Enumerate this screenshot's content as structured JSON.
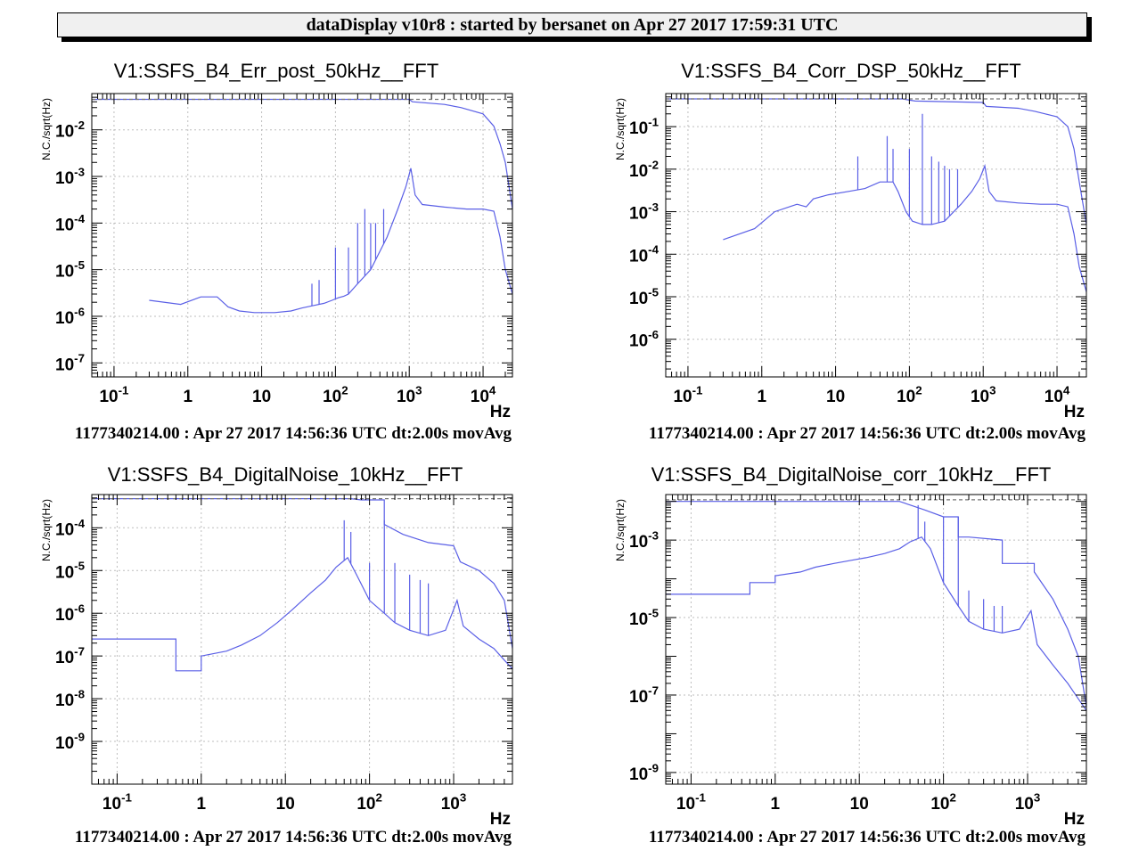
{
  "header": {
    "title": "dataDisplay v10r8 : started by bersanet on Apr 27 2017 17:59:31 UTC"
  },
  "colors": {
    "trace": "#5a5fe6",
    "grid": "#bdbdbd",
    "frame": "#000000"
  },
  "chart_data": [
    {
      "type": "line",
      "title": "V1:SSFS_B4_Err_post_50kHz__FFT",
      "ylabel": "N.C./sqrt(Hz)",
      "xlabel": "Hz",
      "footer": "1177340214.00 : Apr 27 2017 14:56:36 UTC dt:2.00s movAvg",
      "xscale": "log",
      "yscale": "log",
      "xlim": [
        0.05,
        25000
      ],
      "ylim": [
        5e-08,
        0.06
      ],
      "grid": true,
      "xticks": [
        {
          "v": 0.1,
          "b": "10",
          "e": "-1"
        },
        {
          "v": 1,
          "b": "1",
          "e": ""
        },
        {
          "v": 10,
          "b": "10",
          "e": ""
        },
        {
          "v": 100,
          "b": "10",
          "e": "2"
        },
        {
          "v": 1000,
          "b": "10",
          "e": "3"
        },
        {
          "v": 10000,
          "b": "10",
          "e": "4"
        }
      ],
      "yticks": [
        {
          "v": 1e-07,
          "b": "10",
          "e": "-7"
        },
        {
          "v": 1e-06,
          "b": "10",
          "e": "-6"
        },
        {
          "v": 1e-05,
          "b": "10",
          "e": "-5"
        },
        {
          "v": 0.0001,
          "b": "10",
          "e": "-4"
        },
        {
          "v": 0.001,
          "b": "10",
          "e": "-3"
        },
        {
          "v": 0.01,
          "b": "10",
          "e": "-2"
        }
      ],
      "series": [
        {
          "style": "solid",
          "x": [
            0.3,
            0.8,
            1.5,
            2.5,
            3.5,
            5,
            8,
            15,
            25,
            35,
            50,
            70,
            90,
            110,
            130,
            150,
            200,
            300,
            500,
            700,
            900,
            1050,
            1200,
            1500,
            3000,
            6000,
            10000,
            14000,
            17000,
            20000,
            25000
          ],
          "y": [
            2.2e-06,
            1.8e-06,
            2.6e-06,
            2.6e-06,
            1.6e-06,
            1.3e-06,
            1.2e-06,
            1.2e-06,
            1.3e-06,
            1.5e-06,
            1.7e-06,
            1.9e-06,
            2.2e-06,
            2.5e-06,
            2.7e-06,
            3e-06,
            5e-06,
            1e-05,
            5e-05,
            0.0002,
            0.0006,
            0.0015,
            0.0004,
            0.00025,
            0.00022,
            0.0002,
            0.0002,
            0.00018,
            5e-05,
            1e-05,
            3e-06
          ]
        },
        {
          "style": "solid",
          "x": [
            0.05,
            1000,
            1100,
            3000,
            5000,
            10000,
            14000,
            17000,
            20000,
            25000
          ],
          "y": [
            0.045,
            0.045,
            0.04,
            0.035,
            0.03,
            0.022,
            0.012,
            0.005,
            0.002,
            0.0002
          ]
        },
        {
          "style": "dashed",
          "x": [
            0.05,
            25000
          ],
          "y": [
            0.045,
            0.045
          ]
        }
      ],
      "peaks": [
        {
          "x": 48,
          "y": 5e-06
        },
        {
          "x": 60,
          "y": 6e-06
        },
        {
          "x": 100,
          "y": 3e-05
        },
        {
          "x": 150,
          "y": 3e-05
        },
        {
          "x": 200,
          "y": 0.0001
        },
        {
          "x": 250,
          "y": 0.0002
        },
        {
          "x": 300,
          "y": 0.0001
        },
        {
          "x": 350,
          "y": 0.0001
        },
        {
          "x": 450,
          "y": 0.0002
        }
      ]
    },
    {
      "type": "line",
      "title": "V1:SSFS_B4_Corr_DSP_50kHz__FFT",
      "ylabel": "N.C./sqrt(Hz)",
      "xlabel": "Hz",
      "footer": "1177340214.00 : Apr 27 2017 14:56:36 UTC dt:2.00s movAvg",
      "xscale": "log",
      "yscale": "log",
      "xlim": [
        0.05,
        25000
      ],
      "ylim": [
        1.3e-07,
        0.6
      ],
      "grid": true,
      "xticks": [
        {
          "v": 0.1,
          "b": "10",
          "e": "-1"
        },
        {
          "v": 1,
          "b": "1",
          "e": ""
        },
        {
          "v": 10,
          "b": "10",
          "e": ""
        },
        {
          "v": 100,
          "b": "10",
          "e": "2"
        },
        {
          "v": 1000,
          "b": "10",
          "e": "3"
        },
        {
          "v": 10000,
          "b": "10",
          "e": "4"
        }
      ],
      "yticks": [
        {
          "v": 1e-06,
          "b": "10",
          "e": "-6"
        },
        {
          "v": 1e-05,
          "b": "10",
          "e": "-5"
        },
        {
          "v": 0.0001,
          "b": "10",
          "e": "-4"
        },
        {
          "v": 0.001,
          "b": "10",
          "e": "-3"
        },
        {
          "v": 0.01,
          "b": "10",
          "e": "-2"
        },
        {
          "v": 0.1,
          "b": "10",
          "e": "-1"
        }
      ],
      "series": [
        {
          "style": "solid",
          "x": [
            0.3,
            0.8,
            1.5,
            3,
            4,
            5,
            8,
            15,
            25,
            40,
            60,
            70,
            90,
            110,
            150,
            200,
            300,
            500,
            700,
            900,
            1050,
            1200,
            1500,
            3000,
            6000,
            10000,
            14000,
            17000,
            20000,
            25000
          ],
          "y": [
            0.00022,
            0.0004,
            0.001,
            0.0015,
            0.0013,
            0.002,
            0.0025,
            0.003,
            0.0035,
            0.005,
            0.005,
            0.003,
            0.001,
            0.0006,
            0.0005,
            0.0005,
            0.0006,
            0.0015,
            0.003,
            0.006,
            0.012,
            0.003,
            0.0018,
            0.0016,
            0.0015,
            0.0015,
            0.0013,
            0.0003,
            5e-05,
            1.3e-05
          ]
        },
        {
          "style": "solid",
          "x": [
            0.05,
            80,
            120,
            1000,
            1100,
            3000,
            5000,
            10000,
            14000,
            17000,
            20000,
            25000
          ],
          "y": [
            0.45,
            0.45,
            0.4,
            0.37,
            0.3,
            0.27,
            0.23,
            0.17,
            0.1,
            0.03,
            0.005,
            0.0005
          ]
        },
        {
          "style": "dashed",
          "x": [
            0.05,
            25000
          ],
          "y": [
            0.45,
            0.45
          ]
        }
      ],
      "peaks": [
        {
          "x": 20,
          "y": 0.02
        },
        {
          "x": 50,
          "y": 0.06
        },
        {
          "x": 60,
          "y": 0.03
        },
        {
          "x": 100,
          "y": 0.03
        },
        {
          "x": 150,
          "y": 0.2
        },
        {
          "x": 200,
          "y": 0.02
        },
        {
          "x": 250,
          "y": 0.015
        },
        {
          "x": 300,
          "y": 0.012
        },
        {
          "x": 350,
          "y": 0.01
        },
        {
          "x": 450,
          "y": 0.01
        }
      ]
    },
    {
      "type": "line",
      "title": "V1:SSFS_B4_DigitalNoise_10kHz__FFT",
      "ylabel": "N.C./sqrt(Hz)",
      "xlabel": "Hz",
      "footer": "1177340214.00 : Apr 27 2017 14:56:36 UTC dt:2.00s movAvg",
      "xscale": "log",
      "yscale": "log",
      "xlim": [
        0.05,
        5000
      ],
      "ylim": [
        1e-10,
        0.0006
      ],
      "grid": true,
      "xticks": [
        {
          "v": 0.1,
          "b": "10",
          "e": "-1"
        },
        {
          "v": 1,
          "b": "1",
          "e": ""
        },
        {
          "v": 10,
          "b": "10",
          "e": ""
        },
        {
          "v": 100,
          "b": "10",
          "e": "2"
        },
        {
          "v": 1000,
          "b": "10",
          "e": "3"
        }
      ],
      "yticks": [
        {
          "v": 1e-09,
          "b": "10",
          "e": "-9"
        },
        {
          "v": 1e-08,
          "b": "10",
          "e": "-8"
        },
        {
          "v": 1e-07,
          "b": "10",
          "e": "-7"
        },
        {
          "v": 1e-06,
          "b": "10",
          "e": "-6"
        },
        {
          "v": 1e-05,
          "b": "10",
          "e": "-5"
        },
        {
          "v": 0.0001,
          "b": "10",
          "e": "-4"
        }
      ],
      "series": [
        {
          "style": "solid",
          "x": [
            0.05,
            0.5,
            0.5,
            1,
            1,
            2,
            3,
            5,
            8,
            12,
            20,
            30,
            40,
            55,
            70,
            100,
            150,
            200,
            300,
            500,
            800,
            1100,
            1300,
            2000,
            3000,
            4000,
            5000
          ],
          "y": [
            2.5e-07,
            2.5e-07,
            4.5e-08,
            4.5e-08,
            1e-07,
            1.3e-07,
            1.8e-07,
            3e-07,
            6e-07,
            1.2e-06,
            3e-06,
            6e-06,
            1.2e-05,
            2e-05,
            8e-06,
            2e-06,
            1e-06,
            6e-07,
            4e-07,
            3e-07,
            4e-07,
            2e-06,
            5e-07,
            2.5e-07,
            1.5e-07,
            8e-08,
            5e-08
          ]
        },
        {
          "style": "solid",
          "x": [
            0.05,
            60,
            80,
            150,
            150,
            250,
            500,
            1000,
            1200,
            2000,
            3000,
            4000,
            5000
          ],
          "y": [
            0.00048,
            0.00048,
            0.00045,
            0.00045,
            0.00012,
            7e-05,
            4.5e-05,
            3.8e-05,
            1.6e-05,
            1e-05,
            5e-06,
            2e-06,
            1.5e-07
          ]
        },
        {
          "style": "dashed",
          "x": [
            0.05,
            5000
          ],
          "y": [
            0.00048,
            0.00048
          ]
        }
      ],
      "peaks": [
        {
          "x": 50,
          "y": 0.00015
        },
        {
          "x": 60,
          "y": 8e-05
        },
        {
          "x": 100,
          "y": 1.5e-05
        },
        {
          "x": 150,
          "y": 0.00015
        },
        {
          "x": 200,
          "y": 1.5e-05
        },
        {
          "x": 300,
          "y": 8e-06
        },
        {
          "x": 400,
          "y": 6e-06
        },
        {
          "x": 500,
          "y": 5e-06
        }
      ]
    },
    {
      "type": "line",
      "title": "V1:SSFS_B4_DigitalNoise_corr_10kHz__FFT",
      "ylabel": "N.C./sqrt(Hz)",
      "xlabel": "Hz",
      "footer": "1177340214.00 : Apr 27 2017 14:56:36 UTC dt:2.00s movAvg",
      "xscale": "log",
      "yscale": "log",
      "xlim": [
        0.05,
        5000
      ],
      "ylim": [
        5e-10,
        0.015
      ],
      "grid": true,
      "xticks": [
        {
          "v": 0.1,
          "b": "10",
          "e": "-1"
        },
        {
          "v": 1,
          "b": "1",
          "e": ""
        },
        {
          "v": 10,
          "b": "10",
          "e": ""
        },
        {
          "v": 100,
          "b": "10",
          "e": "2"
        },
        {
          "v": 1000,
          "b": "10",
          "e": "3"
        }
      ],
      "yticks": [
        {
          "v": 1e-09,
          "b": "10",
          "e": "-9"
        },
        {
          "v": 1e-07,
          "b": "10",
          "e": "-7"
        },
        {
          "v": 1e-05,
          "b": "10",
          "e": "-5"
        },
        {
          "v": 0.001,
          "b": "10",
          "e": "-3"
        }
      ],
      "series": [
        {
          "style": "solid",
          "x": [
            0.05,
            0.5,
            0.5,
            1,
            1,
            2,
            3,
            5,
            8,
            12,
            20,
            30,
            40,
            55,
            70,
            100,
            150,
            200,
            300,
            500,
            800,
            1100,
            1300,
            2000,
            3000,
            4000,
            5000
          ],
          "y": [
            4e-05,
            4e-05,
            8e-05,
            8e-05,
            0.00012,
            0.00015,
            0.0002,
            0.00025,
            0.0003,
            0.00035,
            0.00045,
            0.0006,
            0.0009,
            0.0012,
            0.0006,
            8e-05,
            2e-05,
            8e-06,
            5e-06,
            4e-06,
            5e-06,
            1.5e-05,
            2e-06,
            6e-07,
            2e-07,
            8e-08,
            4e-08
          ]
        },
        {
          "style": "solid",
          "x": [
            0.05,
            30,
            60,
            100,
            150,
            150,
            200,
            500,
            500,
            1200,
            1200,
            2000,
            3000,
            4000,
            5000
          ],
          "y": [
            0.01,
            0.01,
            0.006,
            0.004,
            0.004,
            0.0012,
            0.0012,
            0.001,
            0.00025,
            0.00025,
            0.00015,
            3e-05,
            5e-06,
            1e-06,
            5e-08
          ]
        },
        {
          "style": "dashed",
          "x": [
            0.05,
            5000
          ],
          "y": [
            0.011,
            0.011
          ]
        }
      ],
      "peaks": [
        {
          "x": 50,
          "y": 0.008
        },
        {
          "x": 60,
          "y": 0.003
        },
        {
          "x": 100,
          "y": 0.004
        },
        {
          "x": 150,
          "y": 0.004
        },
        {
          "x": 200,
          "y": 5e-05
        },
        {
          "x": 300,
          "y": 3e-05
        },
        {
          "x": 400,
          "y": 2e-05
        },
        {
          "x": 500,
          "y": 2e-05
        }
      ]
    }
  ]
}
